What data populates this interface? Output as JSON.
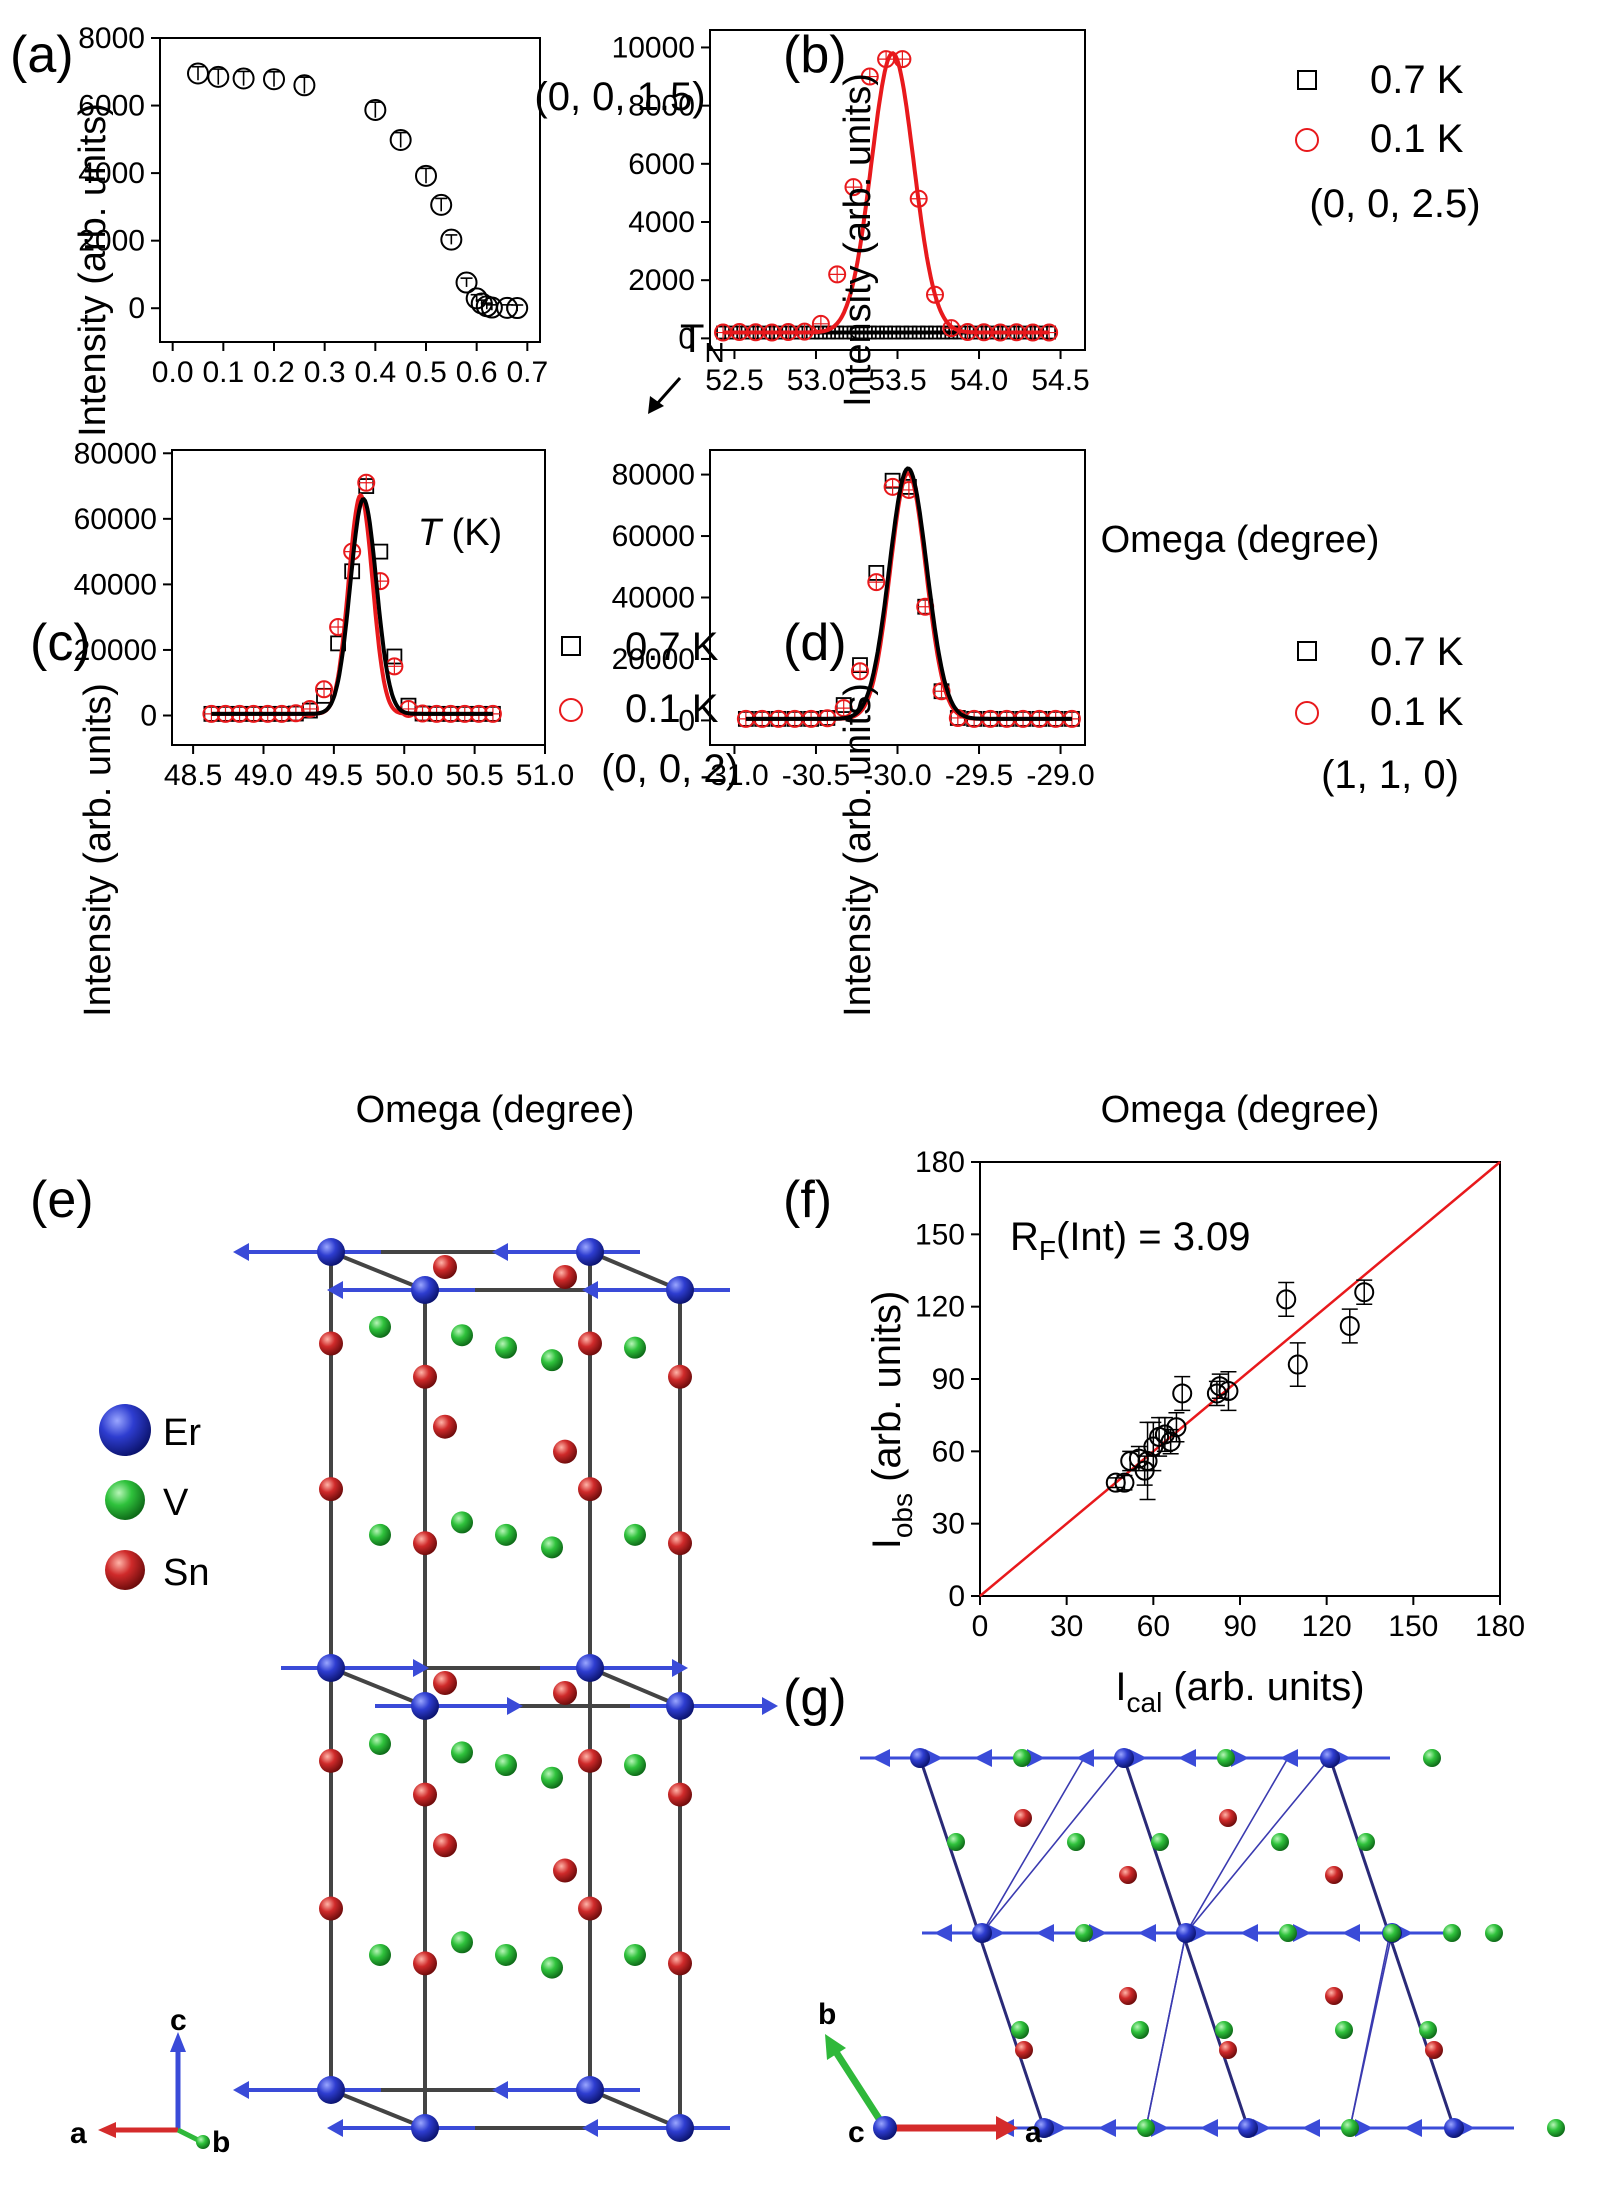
{
  "colors": {
    "black": "#000000",
    "red": "#e8191c",
    "blue": "#2a36c8",
    "green": "#2db83a",
    "sn": "#c42424",
    "bond": "#555555",
    "cell": "#2a2a78",
    "axis_a": "#d42b2b",
    "axis_b": "#2fb83a",
    "axis_c": "#3a4bd8"
  },
  "chart_data": [
    {
      "id": "a",
      "panel_label": "(a)",
      "type": "scatter",
      "xlabel_italic": "T",
      "xlabel_rest": " (K)",
      "ylabel": "Intensity (arb. units)",
      "xlim": [
        -0.025,
        0.725
      ],
      "ylim": [
        -1000,
        8000
      ],
      "xticks": [
        0.0,
        0.1,
        0.2,
        0.3,
        0.4,
        0.5,
        0.6,
        0.7
      ],
      "xtick_labels": [
        "0.0",
        "0.1",
        "0.2",
        "0.3",
        "0.4",
        "0.5",
        "0.6",
        "0.7"
      ],
      "yticks": [
        0,
        2000,
        4000,
        6000,
        8000
      ],
      "ytick_labels": [
        "0",
        "2000",
        "4000",
        "6000",
        "8000"
      ],
      "annotation": "(0, 0, 1.5)",
      "arrow_label": "T",
      "arrow_label_sub": "N",
      "series": [
        {
          "name": "data",
          "marker": "circle",
          "color": "#000000",
          "x": [
            0.05,
            0.09,
            0.14,
            0.2,
            0.26,
            0.4,
            0.45,
            0.5,
            0.53,
            0.55,
            0.58,
            0.6,
            0.61,
            0.62,
            0.63,
            0.66,
            0.68
          ],
          "y": [
            6950,
            6850,
            6800,
            6780,
            6600,
            5870,
            4980,
            3920,
            3060,
            2030,
            760,
            290,
            140,
            60,
            20,
            10,
            5
          ],
          "err": [
            200,
            230,
            210,
            220,
            240,
            230,
            220,
            220,
            190,
            140,
            130,
            110,
            100,
            90,
            80,
            90,
            90
          ]
        }
      ]
    },
    {
      "id": "b",
      "panel_label": "(b)",
      "type": "line",
      "xlabel": "Omega (degree)",
      "ylabel": "Intensity (arb. units)",
      "xlim": [
        52.35,
        54.65
      ],
      "ylim": [
        -400,
        10600
      ],
      "xticks": [
        52.5,
        53.0,
        53.5,
        54.0,
        54.5
      ],
      "xtick_labels": [
        "52.5",
        "53.0",
        "53.5",
        "54.0",
        "54.5"
      ],
      "yticks": [
        0,
        2000,
        4000,
        6000,
        8000,
        10000
      ],
      "ytick_labels": [
        "0",
        "2000",
        "4000",
        "6000",
        "8000",
        "10000"
      ],
      "legend": [
        "0.7 K",
        "0.1 K"
      ],
      "annotation": "(0, 0, 2.5)",
      "series": [
        {
          "name": "0.7 K",
          "marker": "square",
          "color": "#000000",
          "range": [
            52.43,
            54.43
          ],
          "n": 41,
          "flat": 200
        },
        {
          "name": "0.1 K",
          "marker": "circle",
          "color": "#e8191c",
          "x": [
            52.43,
            52.53,
            52.63,
            52.73,
            52.83,
            52.93,
            53.03,
            53.13,
            53.23,
            53.33,
            53.43,
            53.53,
            53.63,
            53.73,
            53.83,
            53.93,
            54.03,
            54.13,
            54.23,
            54.33,
            54.43
          ],
          "y": [
            200,
            220,
            210,
            200,
            220,
            230,
            500,
            2200,
            5200,
            9000,
            9600,
            9600,
            4800,
            1500,
            350,
            220,
            210,
            200,
            210,
            200,
            200
          ]
        }
      ],
      "fits": [
        {
          "color": "#e8191c",
          "amp": 9600,
          "center": 53.47,
          "sigma": 0.13,
          "base": 200
        },
        {
          "color": "#000000",
          "amp": 0,
          "center": 53.4,
          "sigma": 0.1,
          "base": 200
        }
      ]
    },
    {
      "id": "c",
      "panel_label": "(c)",
      "type": "line",
      "xlabel": "Omega (degree)",
      "ylabel": "Intensity (arb. units)",
      "xlim": [
        48.35,
        51.0
      ],
      "ylim": [
        -9000,
        81000
      ],
      "xticks": [
        48.5,
        49.0,
        49.5,
        50.0,
        50.5,
        51.0
      ],
      "xtick_labels": [
        "48.5",
        "49.0",
        "49.5",
        "50.0",
        "50.5",
        "51.0"
      ],
      "yticks": [
        0,
        20000,
        40000,
        60000,
        80000
      ],
      "ytick_labels": [
        "0",
        "20000",
        "40000",
        "60000",
        "80000"
      ],
      "legend": [
        "0.7 K",
        "0.1 K"
      ],
      "annotation": "(0, 0, 2)",
      "series": [
        {
          "name": "0.7 K",
          "marker": "square",
          "color": "#000000",
          "x": [
            48.63,
            48.73,
            48.83,
            48.93,
            49.03,
            49.13,
            49.23,
            49.33,
            49.43,
            49.53,
            49.63,
            49.73,
            49.83,
            49.93,
            50.03,
            50.13,
            50.23,
            50.33,
            50.43,
            50.53,
            50.63
          ],
          "y": [
            500,
            500,
            500,
            500,
            500,
            500,
            600,
            1500,
            6000,
            22000,
            44000,
            70000,
            50000,
            18000,
            3000,
            600,
            500,
            500,
            500,
            500,
            500
          ]
        },
        {
          "name": "0.1 K",
          "marker": "circle",
          "color": "#e8191c",
          "x": [
            48.63,
            48.73,
            48.83,
            48.93,
            49.03,
            49.13,
            49.23,
            49.33,
            49.43,
            49.53,
            49.63,
            49.73,
            49.83,
            49.93,
            50.03,
            50.13,
            50.23,
            50.33,
            50.43,
            50.53,
            50.63
          ],
          "y": [
            500,
            500,
            500,
            500,
            500,
            500,
            700,
            2000,
            8000,
            27000,
            50000,
            71000,
            41000,
            15000,
            2000,
            600,
            500,
            500,
            500,
            500,
            500
          ]
        }
      ],
      "fits": [
        {
          "color": "#e8191c",
          "amp": 66700,
          "center": 49.69,
          "sigma": 0.085,
          "base": 500
        },
        {
          "color": "#000000",
          "amp": 65500,
          "center": 49.71,
          "sigma": 0.093,
          "base": 500
        }
      ]
    },
    {
      "id": "d",
      "panel_label": "(d)",
      "type": "line",
      "xlabel": "Omega (degree)",
      "ylabel": "Intensity (arb. units)",
      "xlim": [
        -31.15,
        -28.85
      ],
      "ylim": [
        -8000,
        88000
      ],
      "xticks": [
        -31.0,
        -30.5,
        -30.0,
        -29.5,
        -29.0
      ],
      "xtick_labels": [
        "-31.0",
        "-30.5",
        "-30.0",
        "-29.5",
        "-29.0"
      ],
      "yticks": [
        0,
        20000,
        40000,
        60000,
        80000
      ],
      "ytick_labels": [
        "0",
        "20000",
        "40000",
        "60000",
        "80000"
      ],
      "legend": [
        "0.7 K",
        "0.1 K"
      ],
      "annotation": "(1, 1, 0)",
      "series": [
        {
          "name": "0.7 K",
          "marker": "square",
          "color": "#000000",
          "x": [
            -30.93,
            -30.83,
            -30.73,
            -30.63,
            -30.53,
            -30.43,
            -30.33,
            -30.23,
            -30.13,
            -30.03,
            -29.93,
            -29.83,
            -29.73,
            -29.63,
            -29.53,
            -29.43,
            -29.33,
            -29.23,
            -29.13,
            -29.03,
            -28.93
          ],
          "y": [
            500,
            500,
            500,
            500,
            500,
            800,
            5000,
            18000,
            48000,
            78000,
            76000,
            37000,
            9500,
            800,
            500,
            500,
            500,
            500,
            500,
            500,
            500
          ]
        },
        {
          "name": "0.1 K",
          "marker": "circle",
          "color": "#e8191c",
          "x": [
            -30.93,
            -30.83,
            -30.73,
            -30.63,
            -30.53,
            -30.43,
            -30.33,
            -30.23,
            -30.13,
            -30.03,
            -29.93,
            -29.83,
            -29.73,
            -29.63,
            -29.53,
            -29.43,
            -29.33,
            -29.23,
            -29.13,
            -29.03,
            -28.93
          ],
          "y": [
            500,
            500,
            500,
            500,
            500,
            700,
            4000,
            16000,
            45000,
            76000,
            75000,
            37000,
            9500,
            800,
            500,
            500,
            500,
            500,
            500,
            500,
            500
          ]
        }
      ],
      "fits": [
        {
          "color": "#e8191c",
          "amp": 80000,
          "center": -29.935,
          "sigma": 0.11,
          "base": 500
        },
        {
          "color": "#000000",
          "amp": 81500,
          "center": -29.935,
          "sigma": 0.115,
          "base": 500
        }
      ]
    },
    {
      "id": "f",
      "panel_label": "(f)",
      "type": "scatter",
      "xlabel_main": "I",
      "xlabel_sub": "cal",
      "xlabel_rest": " (arb. units)",
      "ylabel_main": "I",
      "ylabel_sub": "obs",
      "ylabel_rest": " (arb. units)",
      "xlim": [
        0,
        180
      ],
      "ylim": [
        0,
        180
      ],
      "xticks": [
        0,
        30,
        60,
        90,
        120,
        150,
        180
      ],
      "xtick_labels": [
        "0",
        "30",
        "60",
        "90",
        "120",
        "150",
        "180"
      ],
      "yticks": [
        0,
        30,
        60,
        90,
        120,
        150,
        180
      ],
      "ytick_labels": [
        "0",
        "30",
        "60",
        "90",
        "120",
        "150",
        "180"
      ],
      "annotation_main": "R",
      "annotation_sub": "F",
      "annotation_rest": "(Int) = 3.09",
      "diagonal": true,
      "series": [
        {
          "name": "data",
          "marker": "circle",
          "color": "#000000",
          "x": [
            47,
            50,
            52,
            55,
            57,
            58,
            60,
            62,
            64,
            66,
            68,
            70,
            82,
            83,
            86,
            106,
            110,
            128,
            133
          ],
          "y": [
            47,
            47,
            56,
            57,
            52,
            56,
            62,
            66,
            67,
            64,
            70,
            84,
            84,
            87,
            85,
            123,
            96,
            112,
            126
          ],
          "err": [
            2,
            3,
            4,
            5,
            6,
            16,
            10,
            8,
            7,
            5,
            6,
            7,
            5,
            5,
            8,
            7,
            9,
            7,
            5
          ]
        }
      ]
    }
  ],
  "panel_e": {
    "label": "(e)",
    "legend": [
      {
        "label": "Er",
        "color": "#2a36c8"
      },
      {
        "label": "V",
        "color": "#2db83a"
      },
      {
        "label": "Sn",
        "color": "#c42424"
      }
    ],
    "axes": {
      "a": "a",
      "b": "b",
      "c": "c"
    }
  },
  "panel_g": {
    "label": "(g)",
    "axes": {
      "a": "a",
      "b": "b",
      "c": "c"
    }
  }
}
